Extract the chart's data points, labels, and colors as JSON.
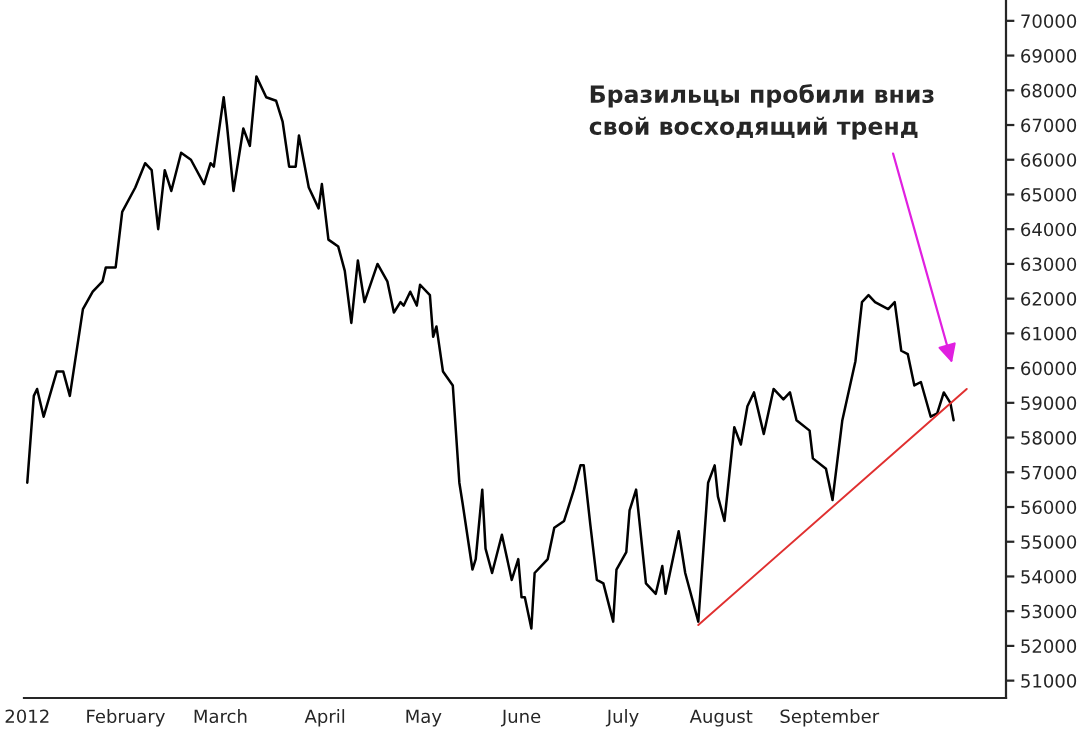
{
  "chart_data": {
    "type": "line",
    "x": [
      "2012-01-02",
      "2012-01-04",
      "2012-01-05",
      "2012-01-07",
      "2012-01-11",
      "2012-01-13",
      "2012-01-15",
      "2012-01-19",
      "2012-01-22",
      "2012-01-25",
      "2012-01-26",
      "2012-01-29",
      "2012-01-31",
      "2012-02-04",
      "2012-02-07",
      "2012-02-09",
      "2012-02-11",
      "2012-02-13",
      "2012-02-15",
      "2012-02-18",
      "2012-02-21",
      "2012-02-25",
      "2012-02-27",
      "2012-02-28",
      "2012-03-02",
      "2012-03-03",
      "2012-03-05",
      "2012-03-08",
      "2012-03-10",
      "2012-03-12",
      "2012-03-15",
      "2012-03-18",
      "2012-03-20",
      "2012-03-22",
      "2012-03-24",
      "2012-03-25",
      "2012-03-28",
      "2012-03-31",
      "2012-04-01",
      "2012-04-03",
      "2012-04-06",
      "2012-04-08",
      "2012-04-10",
      "2012-04-12",
      "2012-04-14",
      "2012-04-18",
      "2012-04-21",
      "2012-04-23",
      "2012-04-25",
      "2012-04-26",
      "2012-04-28",
      "2012-04-30",
      "2012-05-01",
      "2012-05-04",
      "2012-05-05",
      "2012-05-06",
      "2012-05-08",
      "2012-05-11",
      "2012-05-13",
      "2012-05-14",
      "2012-05-17",
      "2012-05-18",
      "2012-05-20",
      "2012-05-21",
      "2012-05-23",
      "2012-05-26",
      "2012-05-29",
      "2012-05-31",
      "2012-06-01",
      "2012-06-02",
      "2012-06-04",
      "2012-06-05",
      "2012-06-08",
      "2012-06-09",
      "2012-06-11",
      "2012-06-14",
      "2012-06-17",
      "2012-06-19",
      "2012-06-20",
      "2012-06-22",
      "2012-06-24",
      "2012-06-26",
      "2012-06-29",
      "2012-06-30",
      "2012-07-03",
      "2012-07-04",
      "2012-07-06",
      "2012-07-09",
      "2012-07-12",
      "2012-07-14",
      "2012-07-15",
      "2012-07-19",
      "2012-07-21",
      "2012-07-25",
      "2012-07-28",
      "2012-07-30",
      "2012-07-31",
      "2012-08-02",
      "2012-08-05",
      "2012-08-07",
      "2012-08-09",
      "2012-08-11",
      "2012-08-14",
      "2012-08-17",
      "2012-08-20",
      "2012-08-22",
      "2012-08-24",
      "2012-08-28",
      "2012-08-29",
      "2012-09-02",
      "2012-09-04",
      "2012-09-07",
      "2012-09-11",
      "2012-09-13",
      "2012-09-15",
      "2012-09-17",
      "2012-09-21",
      "2012-09-23",
      "2012-09-25",
      "2012-09-27",
      "2012-09-29",
      "2012-10-01",
      "2012-10-04",
      "2012-10-06",
      "2012-10-08",
      "2012-10-10",
      "2012-10-11"
    ],
    "series": [
      {
        "color": "#000000",
        "values": [
          56700,
          59200,
          59400,
          58600,
          59900,
          59900,
          59200,
          61700,
          62200,
          62500,
          62900,
          62900,
          64500,
          65200,
          65900,
          65700,
          64000,
          65700,
          65100,
          66200,
          66000,
          65300,
          65900,
          65800,
          67800,
          67000,
          65100,
          66900,
          66400,
          68400,
          67800,
          67700,
          67100,
          65800,
          65800,
          66700,
          65200,
          64600,
          65300,
          63700,
          63500,
          62800,
          61300,
          63100,
          61900,
          63000,
          62500,
          61600,
          61900,
          61800,
          62200,
          61800,
          62400,
          62100,
          60900,
          61200,
          59900,
          59500,
          56700,
          56100,
          54200,
          54500,
          56500,
          54800,
          54100,
          55200,
          53900,
          54500,
          53400,
          53400,
          52500,
          54100,
          54400,
          54500,
          55400,
          55600,
          56500,
          57200,
          57200,
          55500,
          53900,
          53800,
          52700,
          54200,
          54700,
          55900,
          56500,
          53800,
          53500,
          54300,
          53500,
          55300,
          54100,
          52700,
          56700,
          57200,
          56300,
          55600,
          58300,
          57800,
          58900,
          59300,
          58100,
          59400,
          59100,
          59300,
          58500,
          58200,
          57400,
          57100,
          56200,
          58500,
          60200,
          61900,
          62100,
          61900,
          61700,
          61900,
          60500,
          60400,
          59500,
          59600,
          58600,
          58700,
          59300,
          59000,
          58500
        ]
      },
      {
        "type": "line",
        "color": "#e03030",
        "x": [
          "2012-07-25",
          "2012-10-15"
        ],
        "values": [
          52600,
          59400
        ]
      }
    ],
    "xlim": [
      "2012-01-01",
      "2012-10-27"
    ],
    "xticks": [
      {
        "value": "2012-01-02",
        "label": "2012"
      },
      {
        "value": "2012-02-01",
        "label": "February"
      },
      {
        "value": "2012-03-01",
        "label": "March"
      },
      {
        "value": "2012-04-02",
        "label": "April"
      },
      {
        "value": "2012-05-02",
        "label": "May"
      },
      {
        "value": "2012-06-01",
        "label": "June"
      },
      {
        "value": "2012-07-02",
        "label": "July"
      },
      {
        "value": "2012-08-01",
        "label": "August"
      },
      {
        "value": "2012-09-03",
        "label": "September"
      }
    ],
    "ylim": [
      50500,
      70600
    ],
    "yticks": [
      51000,
      52000,
      53000,
      54000,
      55000,
      56000,
      57000,
      58000,
      59000,
      60000,
      61000,
      62000,
      63000,
      64000,
      65000,
      66000,
      67000,
      68000,
      69000,
      70000
    ],
    "grid": false,
    "legend": false,
    "annotations": [
      "Бразильцы пробили вниз\nсвой восходящий тренд"
    ]
  }
}
